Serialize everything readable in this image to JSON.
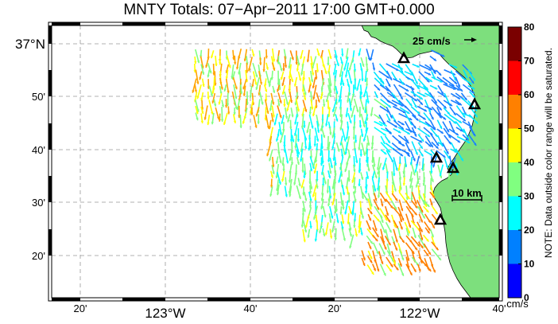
{
  "title": "MNTY Totals: 07−Apr−2011 17:00 GMT+0.000",
  "map": {
    "x_ticks": [
      {
        "label": "20'",
        "big": false
      },
      {
        "label": "123°W",
        "big": true
      },
      {
        "label": "40'",
        "big": false
      },
      {
        "label": "20'",
        "big": false
      },
      {
        "label": "122°W",
        "big": true
      },
      {
        "label": "40'",
        "big": false
      }
    ],
    "y_ticks": [
      {
        "label": "37°N",
        "big": true
      },
      {
        "label": "50'",
        "big": false
      },
      {
        "label": "40'",
        "big": false
      },
      {
        "label": "30'",
        "big": false
      },
      {
        "label": "20'",
        "big": false
      }
    ],
    "scale_vector_label": "25 cm/s",
    "scale_bar_label": "10 km",
    "stations_count": 5
  },
  "colorbar": {
    "ticks": [
      "80",
      "70",
      "60",
      "50",
      "40",
      "30",
      "20",
      "10",
      "0"
    ],
    "colors": [
      "#7a0000",
      "#ff0000",
      "#ff8000",
      "#ffff00",
      "#80ff80",
      "#00ffff",
      "#0080ff",
      "#0000ff"
    ],
    "units": "cm/s",
    "note": "NOTE: Data outside color range will be saturated."
  },
  "colors": {
    "land": "#7ddf7d",
    "grid": "#999999"
  }
}
